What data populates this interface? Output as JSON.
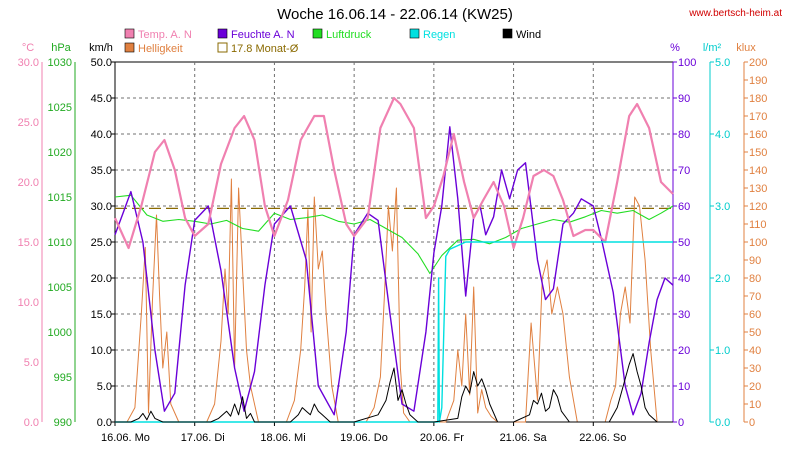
{
  "title": "Woche 16.06.14 - 22.06.14 (KW25)",
  "watermark": "www.bertsch-heim.at",
  "legend": [
    {
      "label": "Temp. A. N",
      "color": "#f080b0",
      "box": "filled"
    },
    {
      "label": "Feuchte A. N",
      "color": "#6a00d8",
      "box": "filled"
    },
    {
      "label": "Luftdruck",
      "color": "#22dd22",
      "box": "filled"
    },
    {
      "label": "Regen",
      "color": "#00e0e0",
      "box": "filled"
    },
    {
      "label": "Wind",
      "color": "#000000",
      "box": "filled"
    },
    {
      "label": "Helligkeit",
      "color": "#e08040",
      "box": "filled"
    },
    {
      "label": "17.8 Monat-Ø",
      "color": "#8a6a00",
      "box": "outline"
    }
  ],
  "chart_data": {
    "type": "line",
    "title": "Woche 16.06.14 - 22.06.14 (KW25)",
    "grid": true,
    "x_axis": {
      "unit": "days",
      "range": [
        0,
        7
      ],
      "tick_labels": [
        "16.06. Mo",
        "17.06. Di",
        "18.06. Mi",
        "19.06. Do",
        "20.06. Fr",
        "21.06. Sa",
        "22.06. So"
      ]
    },
    "y_axes": [
      {
        "key": "temp",
        "unit": "°C",
        "side": "left",
        "color": "#f080b0",
        "range": [
          0,
          30
        ],
        "ticks": [
          "0.0",
          "5.0",
          "10.0",
          "15.0",
          "20.0",
          "25.0",
          "30.0"
        ]
      },
      {
        "key": "pressure",
        "unit": "hPa",
        "side": "left",
        "color": "#22aa22",
        "range": [
          990,
          1030
        ],
        "ticks": [
          "990",
          "995",
          "1000",
          "1005",
          "1010",
          "1015",
          "1020",
          "1025",
          "1030"
        ]
      },
      {
        "key": "wind",
        "unit": "km/h",
        "side": "left",
        "color": "#000000",
        "range": [
          0,
          50
        ],
        "ticks": [
          "0.0",
          "5.0",
          "10.0",
          "15.0",
          "20.0",
          "25.0",
          "30.0",
          "35.0",
          "40.0",
          "45.0",
          "50.0"
        ]
      },
      {
        "key": "humidity",
        "unit": "%",
        "side": "right",
        "color": "#6a00d8",
        "range": [
          0,
          100
        ],
        "ticks": [
          "0",
          "10",
          "20",
          "30",
          "40",
          "50",
          "60",
          "70",
          "80",
          "90",
          "100"
        ]
      },
      {
        "key": "rain",
        "unit": "l/m²",
        "side": "right",
        "color": "#00cccc",
        "range": [
          0,
          5
        ],
        "ticks": [
          "0.0",
          "1.0",
          "2.0",
          "3.0",
          "4.0",
          "5.0"
        ]
      },
      {
        "key": "light",
        "unit": "klux",
        "side": "right",
        "color": "#e08040",
        "range": [
          0,
          200
        ],
        "ticks": [
          "0",
          "10",
          "20",
          "30",
          "40",
          "50",
          "60",
          "70",
          "80",
          "90",
          "100",
          "110",
          "120",
          "130",
          "140",
          "150",
          "160",
          "170",
          "180",
          "190",
          "200"
        ]
      }
    ],
    "reference_line": {
      "label": "17.8 Monat-Ø",
      "value": 17.8,
      "axis": "temp",
      "color": "#8a6a00"
    },
    "series": [
      {
        "name": "Temp. A. N",
        "axis": "temp",
        "color": "#f080b0",
        "x": [
          0,
          0.17,
          0.33,
          0.5,
          0.62,
          0.75,
          0.88,
          1.0,
          1.17,
          1.33,
          1.5,
          1.62,
          1.75,
          1.88,
          2.0,
          2.17,
          2.33,
          2.5,
          2.62,
          2.75,
          2.9,
          3.0,
          3.17,
          3.33,
          3.5,
          3.58,
          3.75,
          3.9,
          4.0,
          4.12,
          4.25,
          4.38,
          4.5,
          4.62,
          4.75,
          4.88,
          5.0,
          5.12,
          5.25,
          5.38,
          5.5,
          5.62,
          5.75,
          5.9,
          6.0,
          6.15,
          6.3,
          6.45,
          6.55,
          6.7,
          6.85,
          7.0
        ],
        "y": [
          17,
          14.5,
          18,
          22.5,
          23.5,
          21,
          17,
          15.5,
          16.5,
          21.5,
          24.5,
          25.5,
          23.5,
          18,
          15.5,
          18.5,
          23.5,
          25.5,
          25.5,
          21,
          16.5,
          15.5,
          17,
          24.5,
          27,
          26.5,
          24.5,
          17,
          18,
          20.5,
          24,
          20,
          17,
          18.5,
          20,
          18,
          14.5,
          17,
          20.5,
          21,
          20.5,
          18.5,
          15.5,
          16,
          16,
          15,
          20,
          25.5,
          26.5,
          24.5,
          20,
          19
        ]
      },
      {
        "name": "Feuchte A. N",
        "axis": "humidity",
        "color": "#6a00d8",
        "x": [
          0,
          0.1,
          0.2,
          0.35,
          0.5,
          0.62,
          0.75,
          0.88,
          1.0,
          1.17,
          1.33,
          1.5,
          1.62,
          1.75,
          1.88,
          2.0,
          2.2,
          2.4,
          2.55,
          2.75,
          2.9,
          3.0,
          3.17,
          3.3,
          3.45,
          3.6,
          3.75,
          3.9,
          4.0,
          4.1,
          4.2,
          4.3,
          4.4,
          4.5,
          4.58,
          4.65,
          4.75,
          4.85,
          4.95,
          5.05,
          5.15,
          5.3,
          5.4,
          5.5,
          5.62,
          5.75,
          5.85,
          6.0,
          6.1,
          6.25,
          6.4,
          6.5,
          6.6,
          6.7,
          6.8,
          6.9,
          7.0
        ],
        "y": [
          52,
          58,
          64,
          50,
          20,
          3,
          8,
          38,
          56,
          60,
          42,
          15,
          3,
          14,
          38,
          55,
          60,
          45,
          10,
          2,
          25,
          52,
          58,
          56,
          30,
          5,
          3,
          25,
          47,
          60,
          82,
          62,
          35,
          57,
          60,
          52,
          57,
          70,
          62,
          70,
          72,
          45,
          34,
          37,
          55,
          58,
          62,
          60,
          51,
          36,
          10,
          2,
          8,
          22,
          34,
          40,
          38
        ]
      },
      {
        "name": "Luftdruck",
        "axis": "pressure",
        "color": "#22dd22",
        "x": [
          0,
          0.2,
          0.4,
          0.6,
          0.8,
          1.0,
          1.2,
          1.4,
          1.6,
          1.8,
          2.0,
          2.2,
          2.4,
          2.6,
          2.8,
          3.0,
          3.2,
          3.4,
          3.6,
          3.8,
          3.95,
          4.1,
          4.3,
          4.5,
          4.7,
          4.9,
          5.1,
          5.3,
          5.5,
          5.7,
          5.9,
          6.1,
          6.3,
          6.5,
          6.7,
          6.85,
          7.0
        ],
        "y": [
          1015,
          1015.2,
          1013,
          1012.3,
          1012.5,
          1012.3,
          1012,
          1012.4,
          1011.5,
          1011.2,
          1013.2,
          1012.5,
          1012.7,
          1013,
          1012.3,
          1012,
          1012.5,
          1011.5,
          1010.5,
          1008.7,
          1006.5,
          1008.5,
          1010.2,
          1010.3,
          1009.8,
          1010.5,
          1011.5,
          1012,
          1012.5,
          1012.2,
          1012.8,
          1013.5,
          1013.2,
          1013.5,
          1012.5,
          1013.2,
          1014
        ]
      },
      {
        "name": "Regen",
        "axis": "rain",
        "color": "#00e0e0",
        "x": [
          0,
          4.0,
          4.05,
          4.06,
          4.07,
          4.1,
          4.15,
          4.2,
          4.3,
          4.4,
          5.0,
          6.0,
          7.0
        ],
        "y": [
          0,
          0,
          0,
          2.0,
          0,
          0.2,
          2.3,
          2.4,
          2.45,
          2.5,
          2.5,
          2.5,
          2.5
        ]
      },
      {
        "name": "Helligkeit",
        "axis": "light",
        "color": "#e08040",
        "x": [
          0,
          0.15,
          0.25,
          0.33,
          0.38,
          0.42,
          0.47,
          0.52,
          0.56,
          0.6,
          0.65,
          0.7,
          0.8,
          1.0,
          1.15,
          1.25,
          1.33,
          1.38,
          1.42,
          1.46,
          1.5,
          1.55,
          1.6,
          1.65,
          1.7,
          1.8,
          2.0,
          2.15,
          2.25,
          2.33,
          2.38,
          2.42,
          2.46,
          2.5,
          2.55,
          2.6,
          2.65,
          2.72,
          2.8,
          3.0,
          3.15,
          3.25,
          3.33,
          3.38,
          3.43,
          3.48,
          3.53,
          3.58,
          3.62,
          3.7,
          3.8,
          4.0,
          4.15,
          4.25,
          4.3,
          4.35,
          4.4,
          4.45,
          4.5,
          4.55,
          4.6,
          4.65,
          4.72,
          4.8,
          5.0,
          5.15,
          5.22,
          5.3,
          5.36,
          5.42,
          5.48,
          5.55,
          5.62,
          5.7,
          5.8,
          6.0,
          6.15,
          6.22,
          6.28,
          6.34,
          6.4,
          6.46,
          6.52,
          6.58,
          6.65,
          6.72,
          6.8,
          7.0
        ],
        "y": [
          0,
          0,
          8,
          60,
          97,
          5,
          68,
          115,
          70,
          30,
          50,
          10,
          0,
          0,
          0,
          10,
          45,
          85,
          60,
          135,
          30,
          130,
          85,
          40,
          20,
          0,
          0,
          0,
          12,
          40,
          75,
          118,
          50,
          125,
          85,
          95,
          60,
          20,
          0,
          0,
          0,
          8,
          25,
          70,
          120,
          95,
          130,
          30,
          5,
          0,
          0,
          0,
          0,
          12,
          40,
          20,
          60,
          15,
          75,
          5,
          18,
          8,
          3,
          0,
          0,
          0,
          55,
          12,
          80,
          90,
          60,
          75,
          60,
          25,
          0,
          0,
          0,
          12,
          20,
          60,
          75,
          55,
          125,
          120,
          90,
          40,
          0,
          0
        ]
      },
      {
        "name": "Wind",
        "axis": "wind",
        "color": "#000000",
        "x": [
          0,
          0.2,
          0.3,
          0.35,
          0.4,
          0.45,
          0.5,
          0.6,
          1.0,
          1.2,
          1.3,
          1.4,
          1.45,
          1.5,
          1.55,
          1.6,
          1.65,
          1.7,
          1.75,
          2.0,
          2.2,
          2.3,
          2.35,
          2.4,
          2.45,
          2.5,
          2.55,
          2.6,
          2.7,
          3.0,
          3.3,
          3.4,
          3.45,
          3.5,
          3.55,
          3.6,
          3.65,
          3.7,
          3.8,
          4.0,
          4.3,
          4.35,
          4.4,
          4.45,
          4.5,
          4.55,
          4.6,
          4.65,
          4.7,
          4.8,
          5.0,
          5.2,
          5.25,
          5.3,
          5.35,
          5.4,
          5.45,
          5.5,
          5.55,
          5.6,
          5.7,
          6.0,
          6.2,
          6.3,
          6.35,
          6.4,
          6.45,
          6.5,
          6.55,
          6.6,
          6.65,
          6.7,
          6.8,
          7.0
        ],
        "y": [
          0,
          0,
          0.5,
          1.2,
          0.3,
          1.5,
          0.5,
          0,
          0,
          0,
          0.5,
          1.5,
          0.8,
          2.5,
          1.0,
          3.5,
          0.5,
          1.2,
          0,
          0,
          0,
          1.0,
          2.0,
          1.5,
          1.0,
          2.5,
          1.5,
          1.0,
          0,
          0,
          1.0,
          3.0,
          5.5,
          7.5,
          3.0,
          4.5,
          2.5,
          1.0,
          0,
          0,
          0.5,
          3.5,
          5.0,
          4.0,
          7.0,
          5.0,
          6.0,
          4.5,
          2.5,
          0,
          0,
          1.0,
          3.0,
          2.5,
          4.0,
          1.5,
          2.0,
          4.5,
          3.5,
          1.5,
          0,
          0,
          0,
          2.0,
          4.0,
          6.0,
          8.0,
          9.5,
          7.0,
          5.0,
          2.0,
          1.0,
          0,
          0
        ]
      }
    ]
  }
}
